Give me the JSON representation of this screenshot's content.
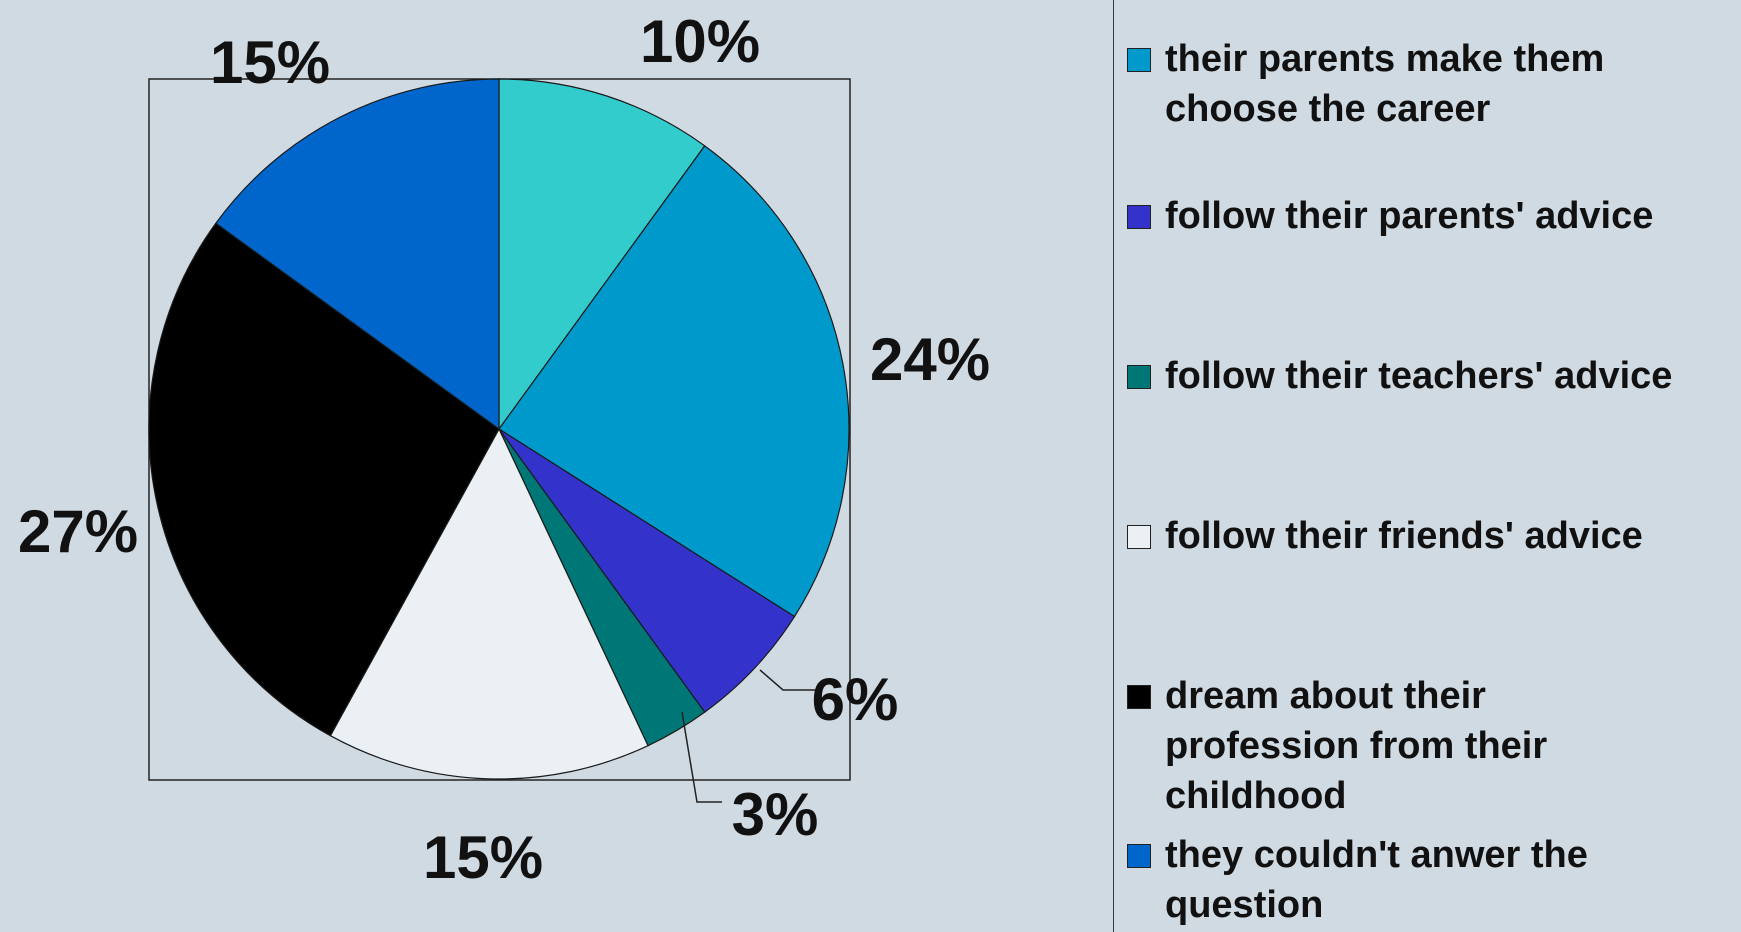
{
  "chart_data": {
    "type": "pie",
    "start_angle_deg": 0,
    "direction": "clockwise",
    "slices": [
      {
        "label": "their parents make them choose the career",
        "value": 10,
        "display": "10%",
        "color": "#33cccc"
      },
      {
        "label": "",
        "value": 24,
        "display": "24%",
        "color": "#0099cc"
      },
      {
        "label": "follow their parents' advice",
        "value": 6,
        "display": "6%",
        "color": "#3333cc"
      },
      {
        "label": "follow their teachers' advice",
        "value": 3,
        "display": "3%",
        "color": "#007777"
      },
      {
        "label": "follow their friends' advice",
        "value": 15,
        "display": "15%",
        "color": "#eaf0f4"
      },
      {
        "label": "dream about their profession from their childhood",
        "value": 27,
        "display": "27%",
        "color": "#000000"
      },
      {
        "label": "they couldn't anwer the question",
        "value": 15,
        "display": "15%",
        "color": "#0066cc"
      }
    ],
    "legend": [
      {
        "text": "their parents make them\nchoose the career",
        "color": "#0099cc"
      },
      {
        "text": "follow their parents' advice",
        "color": "#3333cc"
      },
      {
        "text": "follow their teachers' advice",
        "color": "#007777"
      },
      {
        "text": "follow their friends' advice",
        "color": "#eaf0f4"
      },
      {
        "text": "dream about their\nprofession from their\nchildhood",
        "color": "#000000"
      },
      {
        "text": "they couldn't anwer the\nquestion",
        "color": "#0066cc"
      }
    ],
    "legend_position": "right"
  }
}
